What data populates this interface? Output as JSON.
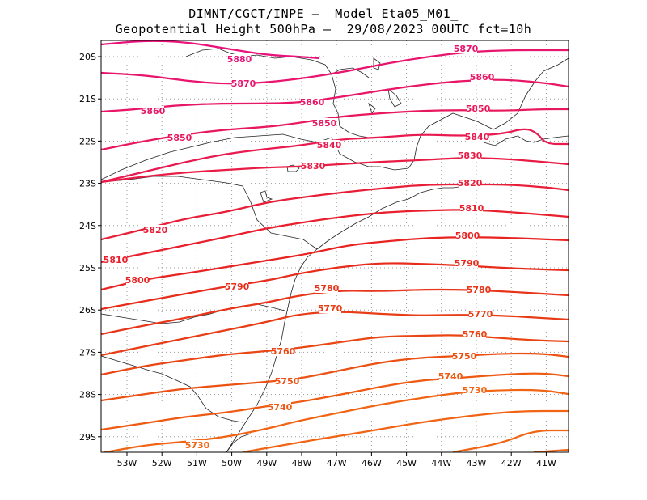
{
  "header": {
    "line1": "DIMNT/CGCT/INPE –  Model Eta05_M01_",
    "line2": "Geopotential Height 500hPa –  29/08/2023 00UTC fct=10h"
  },
  "axes": {
    "lat_labels": [
      "20S",
      "21S",
      "22S",
      "23S",
      "24S",
      "25S",
      "26S",
      "27S",
      "28S",
      "29S"
    ],
    "lon_labels": [
      "53W",
      "52W",
      "51W",
      "50W",
      "49W",
      "48W",
      "47W",
      "46W",
      "45W",
      "44W",
      "43W",
      "42W",
      "41W"
    ]
  },
  "contour_labels": [
    "5880",
    "5870",
    "5860",
    "5850",
    "5840",
    "5830",
    "5820",
    "5810",
    "5800",
    "5790",
    "5780",
    "5770",
    "5760",
    "5750",
    "5740",
    "5730"
  ],
  "colors": {
    "5880": "#e8127a",
    "5870": "#e8146e",
    "5860": "#e81666",
    "5850": "#e8185c",
    "5840": "#e81a50",
    "5830": "#e81c44",
    "5820": "#e81e38",
    "5810": "#e8202e",
    "5800": "#e82422",
    "5790": "#e82c1c",
    "5780": "#e83418",
    "5770": "#e83c16",
    "5760": "#ea4614",
    "5750": "#ec5012",
    "5740": "#ee5a12",
    "5730": "#f06414"
  }
}
